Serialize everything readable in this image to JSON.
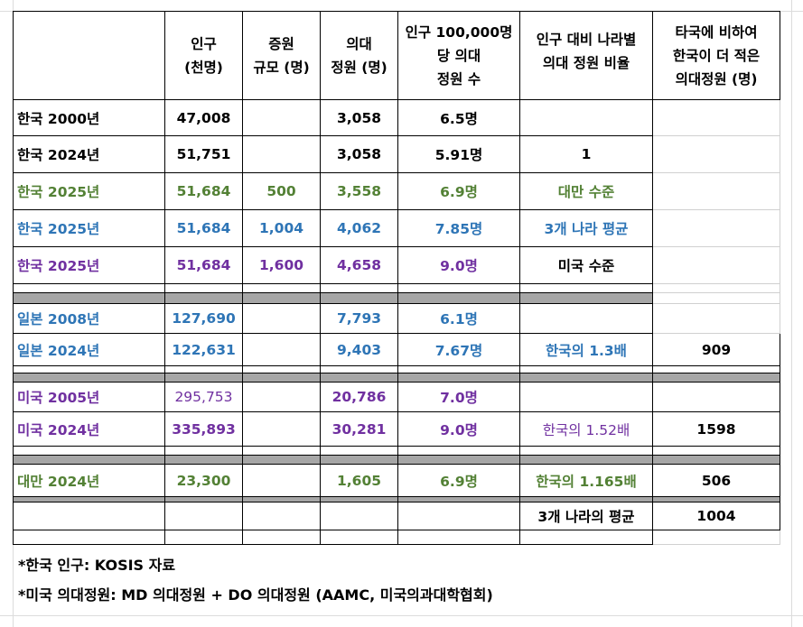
{
  "header": {
    "c1": [
      "인구",
      "(천명)"
    ],
    "c2": [
      "증원",
      "규모 (명)"
    ],
    "c3": [
      "의대",
      "정원 (명)"
    ],
    "c4": [
      "인구 100,000명",
      "당 의대",
      "정원 수"
    ],
    "c5": [
      "인구 대비 나라별",
      "의대 정원 비율"
    ],
    "c6": [
      "타국에 비하여",
      "한국이 더 적은",
      "의대정원 (명)"
    ]
  },
  "rows": [
    {
      "label": "한국 2000년",
      "pop": "47,008",
      "inc": "",
      "quota": "3,058",
      "per": "6.5명",
      "ratio": "",
      "diff": ""
    },
    {
      "label": "한국 2024년",
      "pop": "51,751",
      "inc": "",
      "quota": "3,058",
      "per": "5.91명",
      "ratio": "1",
      "diff": ""
    },
    {
      "label": "한국 2025년",
      "pop": "51,684",
      "inc": "500",
      "quota": "3,558",
      "per": "6.9명",
      "ratio": "대만 수준",
      "diff": ""
    },
    {
      "label": "한국 2025년",
      "pop": "51,684",
      "inc": "1,004",
      "quota": "4,062",
      "per": "7.85명",
      "ratio": "3개 나라 평균",
      "diff": ""
    },
    {
      "label": "한국 2025년",
      "pop": "51,684",
      "inc": "1,600",
      "quota": "4,658",
      "per": "9.0명",
      "ratio": "미국 수준",
      "diff": ""
    },
    {
      "label": "일본 2008년",
      "pop": "127,690",
      "inc": "",
      "quota": "7,793",
      "per": "6.1명",
      "ratio": "",
      "diff": ""
    },
    {
      "label": "일본 2024년",
      "pop": "122,631",
      "inc": "",
      "quota": "9,403",
      "per": "7.67명",
      "ratio": "한국의 1.3배",
      "diff": "909"
    },
    {
      "label": "미국 2005년",
      "pop": "295,753",
      "inc": "",
      "quota": "20,786",
      "per": "7.0명",
      "ratio": "",
      "diff": ""
    },
    {
      "label": "미국 2024년",
      "pop": "335,893",
      "inc": "",
      "quota": "30,281",
      "per": "9.0명",
      "ratio": "한국의 1.52배",
      "diff": "1598"
    },
    {
      "label": "대만 2024년",
      "pop": "23,300",
      "inc": "",
      "quota": "1,605",
      "per": "6.9명",
      "ratio": "한국의 1.165배",
      "diff": "506"
    }
  ],
  "average_row": {
    "label": "3개 나라의 평균",
    "value": "1004"
  },
  "notes": [
    "*한국 인구: KOSIS 자료",
    "*미국 의대정원: MD 의대정원 + DO 의대정원 (AAMC, 미국의과대학협회)"
  ],
  "colors": {
    "green": "#538135",
    "blue": "#2e75b6",
    "purple": "#7030a0",
    "separator": "#a6a6a6"
  }
}
